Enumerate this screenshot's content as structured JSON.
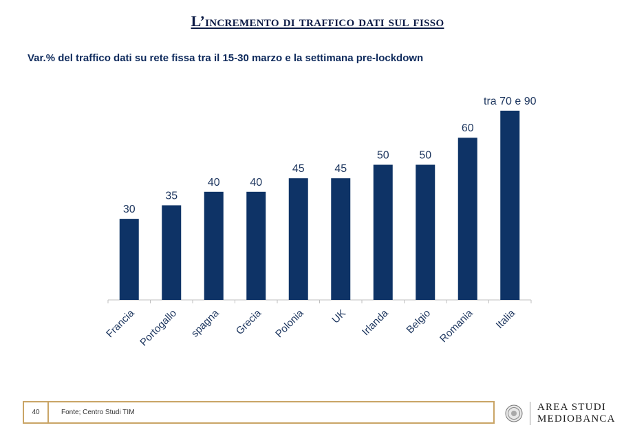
{
  "header": {
    "title": "L’incremento di traffico dati sul fisso",
    "subtitle": "Var.% del traffico dati su rete fissa tra il 15-30 marzo e la settimana pre-lockdown"
  },
  "chart_data": {
    "type": "bar",
    "title": "",
    "xlabel": "",
    "ylabel": "",
    "categories": [
      "Francia",
      "Portogallo",
      "spagna",
      "Grecia",
      "Polonia",
      "UK",
      "Irlanda",
      "Belgio",
      "Romania",
      "Italia"
    ],
    "values": [
      30,
      35,
      40,
      40,
      45,
      45,
      50,
      50,
      60,
      70
    ],
    "value_labels": [
      "30",
      "35",
      "40",
      "40",
      "45",
      "45",
      "50",
      "50",
      "60",
      "tra 70 e 90"
    ],
    "ylim": [
      0,
      70
    ],
    "grid": false,
    "bar_color": "#0e3366"
  },
  "footer": {
    "page_number": "40",
    "source": "Fonte; Centro Studi TIM",
    "logo_line1": "AREA STUDI",
    "logo_line2": "MEDIOBANCA"
  },
  "colors": {
    "title": "#0b1a45",
    "bars": "#0e3366",
    "label_text": "#1c355e",
    "frame": "#c9a465"
  }
}
